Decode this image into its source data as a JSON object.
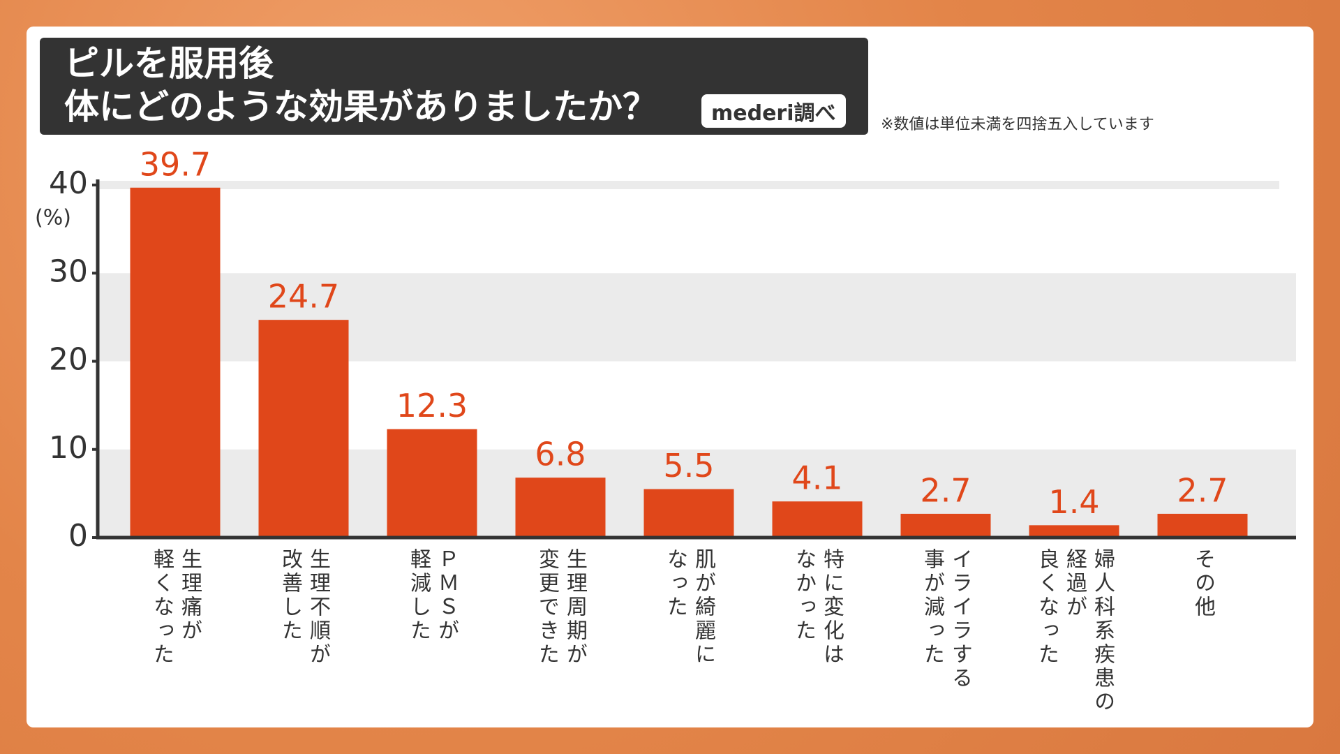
{
  "chart_data": {
    "type": "bar",
    "title": "ピルを服用後\n体にどのような効果がありましたか？",
    "source": "mederi調べ",
    "note": "※数値は単位未満を四捨五入しています",
    "y_label": "(%)",
    "categories": [
      "生理痛が\n軽くなった",
      "生理不順が\n改善した",
      "ＰＭＳが\n軽減した",
      "生理周期が\n変更できた",
      "肌が綺麗に\nなった",
      "特に変化は\nなかった",
      "イライラする\n事が減った",
      "婦人科系疾患の\n経過が\n良くなった",
      "その他"
    ],
    "values": [
      39.7,
      24.7,
      12.3,
      6.8,
      5.5,
      4.1,
      2.7,
      1.4,
      2.7
    ],
    "color": "#e0471a",
    "ylim": [
      0,
      40
    ],
    "yticks": [
      0,
      10,
      20,
      30,
      40
    ],
    "grid": true
  }
}
